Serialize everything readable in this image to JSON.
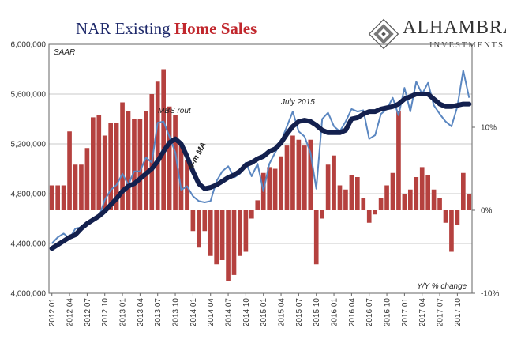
{
  "title": {
    "part1": "NAR Existing",
    "part2": "Home Sales"
  },
  "brand": {
    "name": "ALHAMBRA",
    "tagline": "INVESTMENTS"
  },
  "colors": {
    "title_navy": "#1f2a6b",
    "title_red": "#c1272d",
    "bars": "#b5413f",
    "ma_line": "#13204e",
    "sales_line": "#5b87c1"
  },
  "chart_data": {
    "type": "bar+line",
    "x": [
      "2012.01",
      "2012.02",
      "2012.03",
      "2012.04",
      "2012.05",
      "2012.06",
      "2012.07",
      "2012.08",
      "2012.09",
      "2012.10",
      "2012.11",
      "2012.12",
      "2013.01",
      "2013.02",
      "2013.03",
      "2013.04",
      "2013.05",
      "2013.06",
      "2013.07",
      "2013.08",
      "2013.09",
      "2013.10",
      "2013.11",
      "2013.12",
      "2014.01",
      "2014.02",
      "2014.03",
      "2014.04",
      "2014.05",
      "2014.06",
      "2014.07",
      "2014.08",
      "2014.09",
      "2014.10",
      "2014.11",
      "2014.12",
      "2015.01",
      "2015.02",
      "2015.03",
      "2015.04",
      "2015.05",
      "2015.06",
      "2015.07",
      "2015.08",
      "2015.09",
      "2015.10",
      "2015.11",
      "2015.12",
      "2016.01",
      "2016.02",
      "2016.03",
      "2016.04",
      "2016.05",
      "2016.06",
      "2016.07",
      "2016.08",
      "2016.09",
      "2016.10",
      "2016.11",
      "2016.12",
      "2017.01",
      "2017.02",
      "2017.03",
      "2017.04",
      "2017.05",
      "2017.06",
      "2017.07",
      "2017.08",
      "2017.09",
      "2017.10",
      "2017.11",
      "2017.12"
    ],
    "tick_labels": [
      "2012.01",
      "2012.04",
      "2012.07",
      "2012.10",
      "2013.01",
      "2013.04",
      "2013.07",
      "2013.10",
      "2014.01",
      "2014.04",
      "2014.07",
      "2014.10",
      "2015.01",
      "2015.04",
      "2015.07",
      "2015.10",
      "2016.01",
      "2016.04",
      "2016.07",
      "2016.10",
      "2017.01",
      "2017.04",
      "2017.07",
      "2017.10"
    ],
    "left_axis": {
      "ticks": [
        "4,000,000",
        "4,400,000",
        "4,800,000",
        "5,200,000",
        "5,600,000",
        "6,000,000"
      ],
      "ylim": [
        4000000,
        6000000
      ],
      "label": "SAAR"
    },
    "right_axis": {
      "ticks": [
        "10%",
        "0%",
        "-10%"
      ],
      "ylim": [
        -0.1,
        0.2
      ],
      "label": "Y/Y % change"
    },
    "series": [
      {
        "name": "Existing Home Sales",
        "axis": "left",
        "kind": "line",
        "values": [
          4400000,
          4450000,
          4480000,
          4440000,
          4520000,
          4530000,
          4570000,
          4600000,
          4610000,
          4750000,
          4830000,
          4870000,
          4960000,
          4870000,
          4980000,
          4980000,
          5090000,
          5050000,
          5370000,
          5380000,
          5260000,
          5130000,
          4830000,
          4860000,
          4780000,
          4740000,
          4730000,
          4740000,
          4900000,
          4980000,
          5020000,
          4930000,
          4960000,
          5050000,
          4940000,
          5040000,
          4820000,
          5040000,
          5130000,
          5220000,
          5340000,
          5460000,
          5300000,
          5260000,
          5130000,
          4840000,
          5400000,
          5450000,
          5340000,
          5300000,
          5380000,
          5480000,
          5460000,
          5470000,
          5240000,
          5270000,
          5440000,
          5480000,
          5570000,
          5430000,
          5650000,
          5460000,
          5700000,
          5600000,
          5690000,
          5510000,
          5440000,
          5380000,
          5340000,
          5500000,
          5790000,
          5570000
        ]
      },
      {
        "name": "6-m MA",
        "axis": "left",
        "kind": "line",
        "values": [
          4360000,
          4390000,
          4420000,
          4450000,
          4470000,
          4520000,
          4560000,
          4590000,
          4620000,
          4660000,
          4710000,
          4760000,
          4820000,
          4860000,
          4880000,
          4920000,
          4960000,
          5000000,
          5060000,
          5140000,
          5210000,
          5240000,
          5200000,
          5100000,
          4980000,
          4880000,
          4840000,
          4850000,
          4870000,
          4900000,
          4930000,
          4950000,
          4980000,
          5030000,
          5050000,
          5080000,
          5100000,
          5140000,
          5160000,
          5210000,
          5280000,
          5340000,
          5380000,
          5390000,
          5380000,
          5350000,
          5310000,
          5290000,
          5290000,
          5290000,
          5310000,
          5400000,
          5410000,
          5440000,
          5460000,
          5460000,
          5480000,
          5490000,
          5500000,
          5520000,
          5560000,
          5580000,
          5600000,
          5600000,
          5600000,
          5560000,
          5520000,
          5500000,
          5500000,
          5510000,
          5520000,
          5520000
        ]
      },
      {
        "name": "Y/Y % change",
        "axis": "right",
        "kind": "bar",
        "values": [
          0.03,
          0.03,
          0.03,
          0.095,
          0.055,
          0.055,
          0.075,
          0.112,
          0.115,
          0.09,
          0.105,
          0.105,
          0.13,
          0.12,
          0.11,
          0.11,
          0.12,
          0.14,
          0.155,
          0.17,
          0.125,
          0.115,
          0.08,
          0.06,
          -0.025,
          -0.045,
          -0.025,
          -0.055,
          -0.065,
          -0.06,
          -0.085,
          -0.078,
          -0.055,
          -0.05,
          -0.01,
          0.012,
          0.045,
          0.052,
          0.05,
          0.065,
          0.078,
          0.09,
          0.085,
          0.078,
          0.085,
          -0.065,
          -0.01,
          0.055,
          0.066,
          0.03,
          0.025,
          0.042,
          0.04,
          0.015,
          -0.015,
          -0.005,
          0.015,
          0.03,
          0.045,
          0.12,
          0.02,
          0.025,
          0.04,
          0.052,
          0.042,
          0.025,
          0.015,
          -0.015,
          -0.05,
          -0.018,
          0.045,
          0.02
        ]
      }
    ],
    "annotations": [
      "MBS rout",
      "July 2015",
      "6-m MA"
    ],
    "grid": "horizontal"
  }
}
